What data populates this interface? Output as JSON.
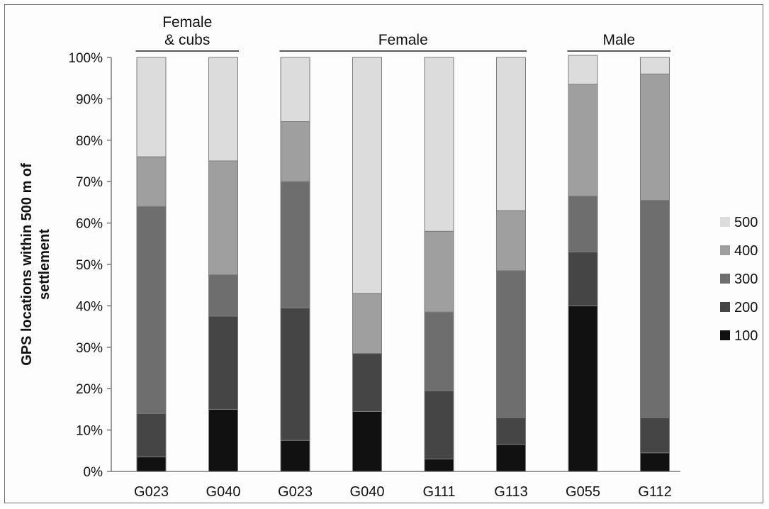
{
  "chart_data": {
    "type": "bar",
    "stacked": true,
    "ylabel": [
      "GPS locations within 500 m of",
      "settlement"
    ],
    "ylim": [
      0,
      100
    ],
    "yticks": [
      "0%",
      "10%",
      "20%",
      "30%",
      "40%",
      "50%",
      "60%",
      "70%",
      "80%",
      "90%",
      "100%"
    ],
    "categories": [
      "G023",
      "G040",
      "G023",
      "G040",
      "G111",
      "G113",
      "G055",
      "G112"
    ],
    "groups": [
      {
        "label": [
          "Female",
          "& cubs"
        ],
        "categories": [
          0,
          1
        ]
      },
      {
        "label": [
          "Female"
        ],
        "categories": [
          2,
          3,
          4,
          5
        ]
      },
      {
        "label": [
          "Male"
        ],
        "categories": [
          6,
          7
        ]
      }
    ],
    "series": [
      {
        "name": "100",
        "color": "#111111",
        "values": [
          3.5,
          15,
          7.5,
          14.5,
          3,
          6.5,
          40,
          4.5
        ]
      },
      {
        "name": "200",
        "color": "#454545",
        "values": [
          10.5,
          22.5,
          32,
          14,
          16.5,
          6.5,
          13,
          8.5
        ]
      },
      {
        "name": "300",
        "color": "#6e6e6e",
        "values": [
          50,
          10,
          30.5,
          0,
          19,
          35.5,
          13.5,
          52.5
        ]
      },
      {
        "name": "400",
        "color": "#9f9f9f",
        "values": [
          12,
          27.5,
          14.5,
          14.5,
          19.5,
          14.5,
          27,
          30.5
        ]
      },
      {
        "name": "500",
        "color": "#dcdcdc",
        "values": [
          24,
          25,
          15.5,
          57,
          42,
          37,
          7,
          4
        ]
      }
    ],
    "legend": {
      "position": "right",
      "order": [
        "500",
        "400",
        "300",
        "200",
        "100"
      ]
    },
    "grid": false
  }
}
